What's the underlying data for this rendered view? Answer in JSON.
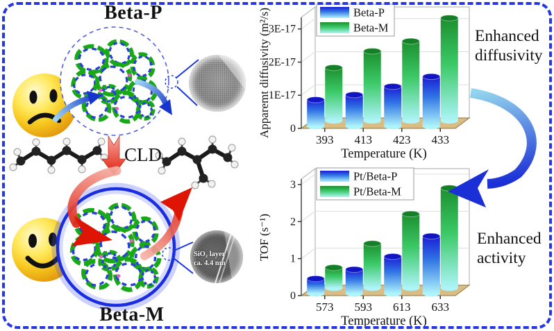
{
  "left": {
    "beta_p_title": "Beta-P",
    "beta_m_title": "Beta-M",
    "cld_label": "CLD",
    "tem_caption_line1": "SiO₂ layer",
    "tem_caption_line2": "ca. 4.4 nm"
  },
  "right": {
    "enhanced_diffusivity_line1": "Enhanced",
    "enhanced_diffusivity_line2": "diffusivity",
    "enhanced_activity_line1": "Enhanced",
    "enhanced_activity_line2": "activity"
  },
  "chart_data": [
    {
      "type": "bar",
      "id": "diffusivity-chart",
      "title": "",
      "ylabel": "Apparemt diffusivity (m²/s)",
      "xlabel": "Temperature (K)",
      "categories": [
        "393",
        "413",
        "423",
        "433"
      ],
      "series": [
        {
          "name": "Beta-P",
          "color": "blue",
          "values": [
            0.8,
            0.95,
            1.2,
            1.5
          ]
        },
        {
          "name": "Beta-M",
          "color": "green",
          "values": [
            1.6,
            2.1,
            2.4,
            3.1
          ]
        }
      ],
      "value_unit": "1E-17 m2/s",
      "ytick_values": [
        0,
        1,
        2,
        3
      ],
      "ytick_labels": [
        "0",
        "1E-17",
        "2E-17",
        "3E-17"
      ],
      "ylim": [
        0,
        3.35
      ],
      "grid": true,
      "legend_position": "top-left"
    },
    {
      "type": "bar",
      "id": "tof-chart",
      "title": "",
      "ylabel": "TOF (s⁻¹)",
      "xlabel": "Temperature (K)",
      "categories": [
        "573",
        "593",
        "613",
        "633"
      ],
      "series": [
        {
          "name": "Pt/Beta-P",
          "color": "blue",
          "values": [
            0.4,
            0.65,
            1.0,
            1.55
          ]
        },
        {
          "name": "Pt/Beta-M",
          "color": "green",
          "values": [
            0.55,
            1.2,
            2.0,
            2.7
          ]
        }
      ],
      "value_unit": "s-1",
      "ytick_values": [
        0,
        1,
        2,
        3
      ],
      "ytick_labels": [
        "0",
        "1",
        "2",
        "3"
      ],
      "ylim": [
        0,
        3.15
      ],
      "grid": true,
      "legend_position": "top-left"
    }
  ],
  "colors": {
    "border_blue": "#2636e0",
    "bar_blue_top": "#1a1ed6",
    "bar_blue_bottom": "#aef4fb",
    "bar_green_top": "#1d8f2e",
    "bar_green_bottom": "#aef4f8",
    "floor_tan": "#d9bd85",
    "arrow_red": "#de1505",
    "flow_arrow_blue": "#1a2fd6",
    "zeolite_green": "#18a818",
    "zeolite_blue": "#2a3fd8"
  }
}
